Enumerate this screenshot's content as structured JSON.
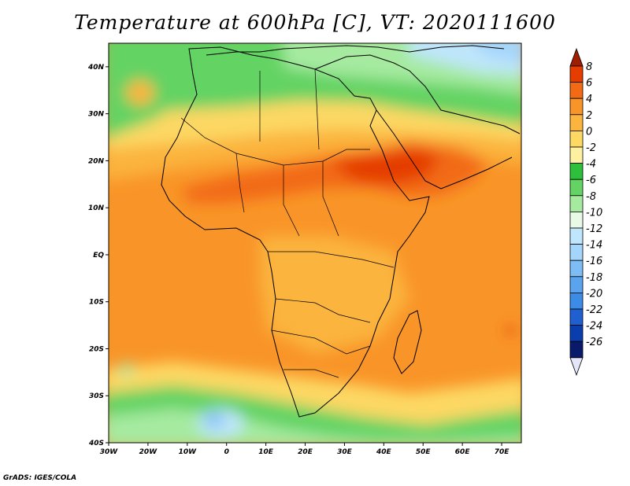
{
  "title": "Temperature at 600hPa [C], VT: 2020111600",
  "credit": "GrADS: IGES/COLA",
  "map": {
    "lon_labels": [
      "30W",
      "20W",
      "10W",
      "0",
      "10E",
      "20E",
      "30E",
      "40E",
      "50E",
      "60E",
      "70E"
    ],
    "lat_labels": [
      "40N",
      "30N",
      "20N",
      "10N",
      "EQ",
      "10S",
      "20S",
      "30S",
      "40S"
    ],
    "lon_range": [
      -30,
      75
    ],
    "lat_range": [
      -40,
      45
    ]
  },
  "colorbar": {
    "labels": [
      "8",
      "6",
      "4",
      "2",
      "0",
      "-2",
      "-4",
      "-6",
      "-8",
      "-10",
      "-12",
      "-14",
      "-16",
      "-18",
      "-20",
      "-22",
      "-24",
      "-26"
    ],
    "colors": [
      "#a01e00",
      "#e53c00",
      "#f26a14",
      "#f99528",
      "#fbb43e",
      "#fdd863",
      "#fdf0a0",
      "#2ebf3c",
      "#64d364",
      "#a6eaa0",
      "#e8fae6",
      "#bfe6fc",
      "#a4d5fa",
      "#7ebcf5",
      "#5aa4ef",
      "#3c8be6",
      "#1f5fd0",
      "#0a3dad",
      "#0a1a6b",
      "#e6e6fa"
    ]
  }
}
